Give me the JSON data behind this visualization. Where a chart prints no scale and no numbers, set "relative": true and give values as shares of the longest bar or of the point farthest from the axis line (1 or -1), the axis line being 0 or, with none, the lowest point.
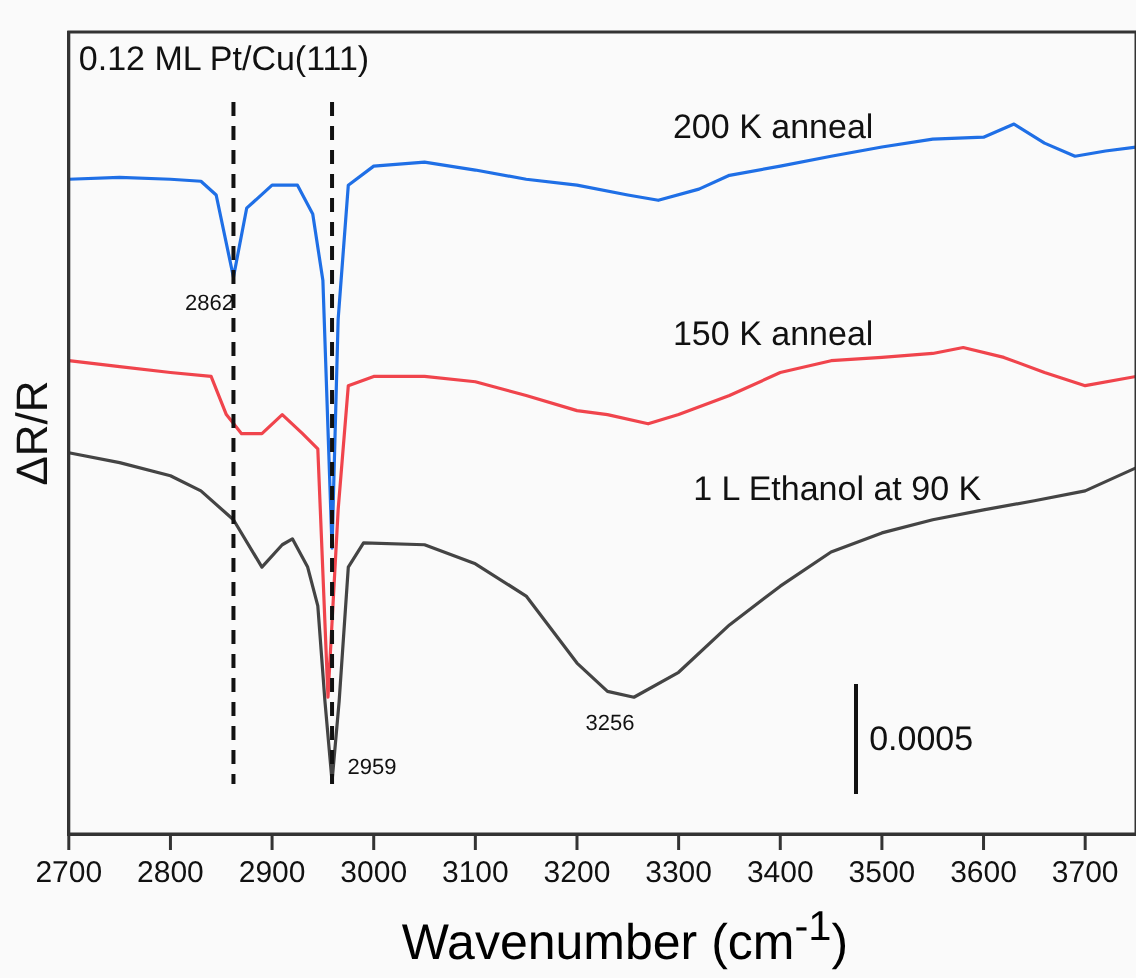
{
  "chart_data": {
    "type": "line",
    "relative": true,
    "xlabel": "Wavenumber (cm$^{-1}$)",
    "ylabel": "ΔR/R",
    "xlim": [
      2700,
      3750
    ],
    "xticks": [
      2700,
      2800,
      2900,
      3000,
      3100,
      3200,
      3300,
      3400,
      3500,
      3600,
      3700
    ],
    "tick_labels": "x",
    "grid": false,
    "legend": false,
    "marker": "none",
    "line_style": "solid",
    "series": [
      {
        "name": "200 K anneal",
        "color": "#1f6fe6",
        "x": [
          2700,
          2750,
          2800,
          2830,
          2845,
          2862,
          2875,
          2900,
          2925,
          2940,
          2950,
          2959,
          2965,
          2975,
          3000,
          3050,
          3100,
          3150,
          3200,
          3250,
          3280,
          3320,
          3350,
          3400,
          3450,
          3500,
          3550,
          3600,
          3630,
          3660,
          3690,
          3720,
          3750
        ],
        "values": [
          0.916,
          0.919,
          0.916,
          0.913,
          0.892,
          0.767,
          0.872,
          0.907,
          0.907,
          0.863,
          0.762,
          0.355,
          0.703,
          0.907,
          0.936,
          0.942,
          0.93,
          0.916,
          0.907,
          0.892,
          0.884,
          0.901,
          0.922,
          0.936,
          0.951,
          0.965,
          0.977,
          0.98,
          1,
          0.971,
          0.951,
          0.959,
          0.965
        ]
      },
      {
        "name": "150 K anneal",
        "color": "#f0444c",
        "x": [
          2700,
          2750,
          2800,
          2840,
          2855,
          2870,
          2890,
          2910,
          2930,
          2945,
          2955,
          2965,
          2975,
          3000,
          3050,
          3100,
          3150,
          3200,
          3230,
          3270,
          3300,
          3350,
          3400,
          3450,
          3500,
          3550,
          3580,
          3620,
          3660,
          3700,
          3750
        ],
        "values": [
          0.64,
          0.631,
          0.622,
          0.616,
          0.558,
          0.529,
          0.529,
          0.558,
          0.529,
          0.506,
          0.128,
          0.413,
          0.602,
          0.616,
          0.616,
          0.608,
          0.587,
          0.564,
          0.558,
          0.544,
          0.558,
          0.587,
          0.622,
          0.64,
          0.645,
          0.651,
          0.66,
          0.645,
          0.622,
          0.602,
          0.616
        ]
      },
      {
        "name": "1 L Ethanol at 90 K",
        "color": "#444444",
        "x": [
          2700,
          2750,
          2800,
          2830,
          2862,
          2890,
          2910,
          2920,
          2935,
          2945,
          2952,
          2959,
          2966,
          2975,
          2990,
          3050,
          3100,
          3150,
          3200,
          3230,
          3256,
          3300,
          3350,
          3400,
          3450,
          3500,
          3550,
          3600,
          3650,
          3700,
          3750
        ],
        "values": [
          0.5,
          0.485,
          0.465,
          0.442,
          0.398,
          0.326,
          0.36,
          0.369,
          0.326,
          0.267,
          0.122,
          0,
          0.122,
          0.326,
          0.363,
          0.36,
          0.331,
          0.282,
          0.18,
          0.137,
          0.128,
          0.166,
          0.238,
          0.297,
          0.349,
          0.378,
          0.398,
          0.413,
          0.427,
          0.442,
          0.477
        ]
      }
    ],
    "ref_lines": [
      {
        "axis": "x",
        "value": 2862,
        "color": "#111111",
        "line_style": "dashed"
      },
      {
        "axis": "x",
        "value": 2959,
        "color": "#111111",
        "line_style": "dashed"
      }
    ],
    "annotations": [
      "0.12 ML Pt/Cu(111)",
      {
        "text": "2862",
        "x": 2862,
        "y": 0.767
      },
      {
        "text": "2959",
        "x": 2959,
        "y": 0
      },
      {
        "text": "3256",
        "x": 3256,
        "y": 0.128
      },
      "0.0005"
    ]
  }
}
